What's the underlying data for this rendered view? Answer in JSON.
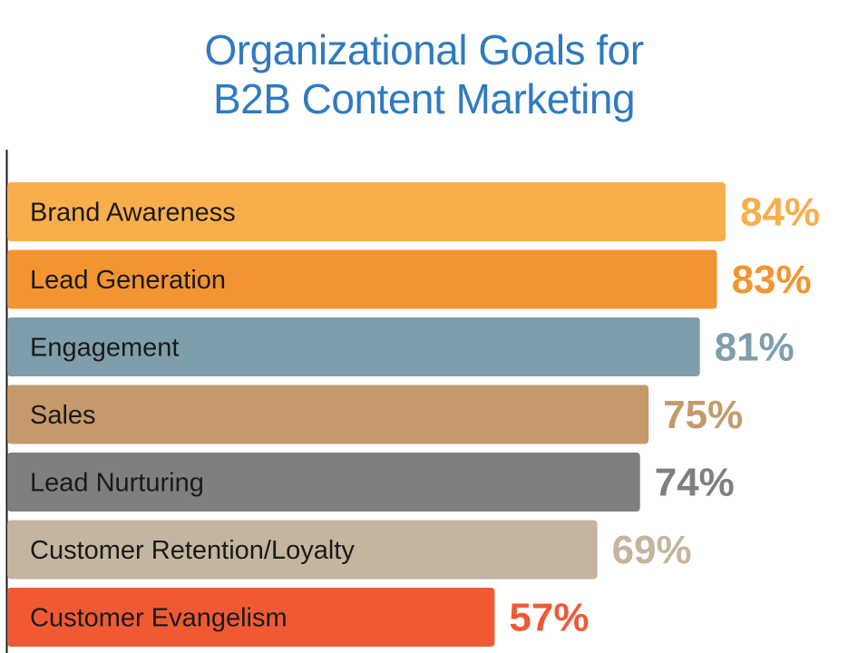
{
  "chart_data": {
    "type": "bar",
    "orientation": "horizontal",
    "title_lines": [
      "Organizational Goals for",
      "B2B Content Marketing"
    ],
    "categories": [
      "Brand Awareness",
      "Lead Generation",
      "Engagement",
      "Sales",
      "Lead Nurturing",
      "Customer Retention/Loyalty",
      "Customer Evangelism"
    ],
    "values": [
      84,
      83,
      81,
      75,
      74,
      69,
      57
    ],
    "value_labels": [
      "84%",
      "83%",
      "81%",
      "75%",
      "74%",
      "69%",
      "57%"
    ],
    "colors": [
      "#f9ae4c",
      "#f39433",
      "#7f9eac",
      "#c49a6c",
      "#7f7f7f",
      "#c3b59f",
      "#ef5a35"
    ],
    "unit": "%",
    "xlim": [
      0,
      100
    ],
    "grid": false,
    "legend": "none",
    "colors_title": "#2f7ac2"
  }
}
